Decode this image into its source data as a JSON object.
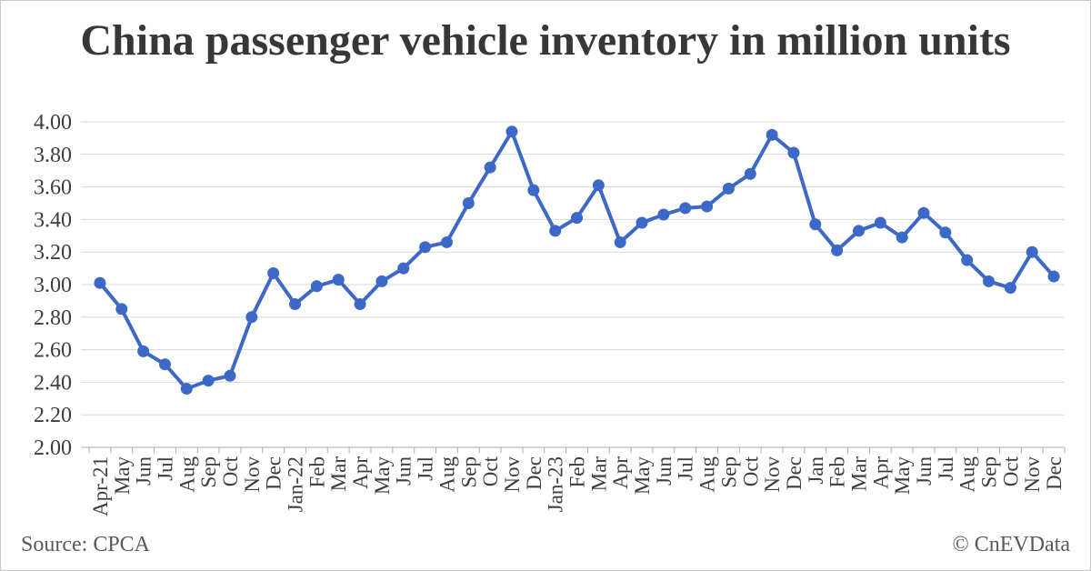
{
  "footer": {
    "source": "Source: CPCA",
    "credit": "© CnEVData"
  },
  "chart_data": {
    "type": "line",
    "title": "China passenger vehicle inventory in million units",
    "xlabel": "",
    "ylabel": "",
    "ylim": [
      2.0,
      4.0
    ],
    "grid": true,
    "legend": "none",
    "categories": [
      "Apr-21",
      "May",
      "Jun",
      "Jul",
      "Aug",
      "Sep",
      "Oct",
      "Nov",
      "Dec",
      "Jan-22",
      "Feb",
      "Mar",
      "Apr",
      "May",
      "Jun",
      "Jul",
      "Aug",
      "Sep",
      "Oct",
      "Nov",
      "Dec",
      "Jan-23",
      "Feb",
      "Mar",
      "Apr",
      "May",
      "Jun",
      "Jul",
      "Aug",
      "Sep",
      "Oct",
      "Nov",
      "Dec",
      "Jan",
      "Feb",
      "Mar",
      "Apr",
      "May",
      "Jun",
      "Jul",
      "Aug",
      "Sep",
      "Oct",
      "Nov",
      "Dec"
    ],
    "values": [
      3.01,
      2.85,
      2.59,
      2.51,
      2.36,
      2.41,
      2.44,
      2.8,
      3.07,
      2.88,
      2.99,
      3.03,
      2.88,
      3.02,
      3.1,
      3.23,
      3.26,
      3.5,
      3.72,
      3.94,
      3.58,
      3.33,
      3.41,
      3.61,
      3.26,
      3.38,
      3.43,
      3.47,
      3.48,
      3.59,
      3.68,
      3.92,
      3.81,
      3.37,
      3.21,
      3.33,
      3.38,
      3.29,
      3.44,
      3.32,
      3.15,
      3.02,
      2.98,
      3.2,
      3.05
    ],
    "yticks": [
      {
        "value": 2.0,
        "label": "2.00"
      },
      {
        "value": 2.2,
        "label": "2.20"
      },
      {
        "value": 2.4,
        "label": "2.40"
      },
      {
        "value": 2.6,
        "label": "2.60"
      },
      {
        "value": 2.8,
        "label": "2.80"
      },
      {
        "value": 3.0,
        "label": "3.00"
      },
      {
        "value": 3.2,
        "label": "3.20"
      },
      {
        "value": 3.4,
        "label": "3.40"
      },
      {
        "value": 3.6,
        "label": "3.60"
      },
      {
        "value": 3.8,
        "label": "3.80"
      },
      {
        "value": 4.0,
        "label": "4.00"
      }
    ],
    "line_color": "#3C68C8",
    "marker_color": "#3C68C8",
    "gridline_color": "#D9D9D9",
    "axis_color": "#ACACAC",
    "label_color": "#3D3D3D"
  }
}
